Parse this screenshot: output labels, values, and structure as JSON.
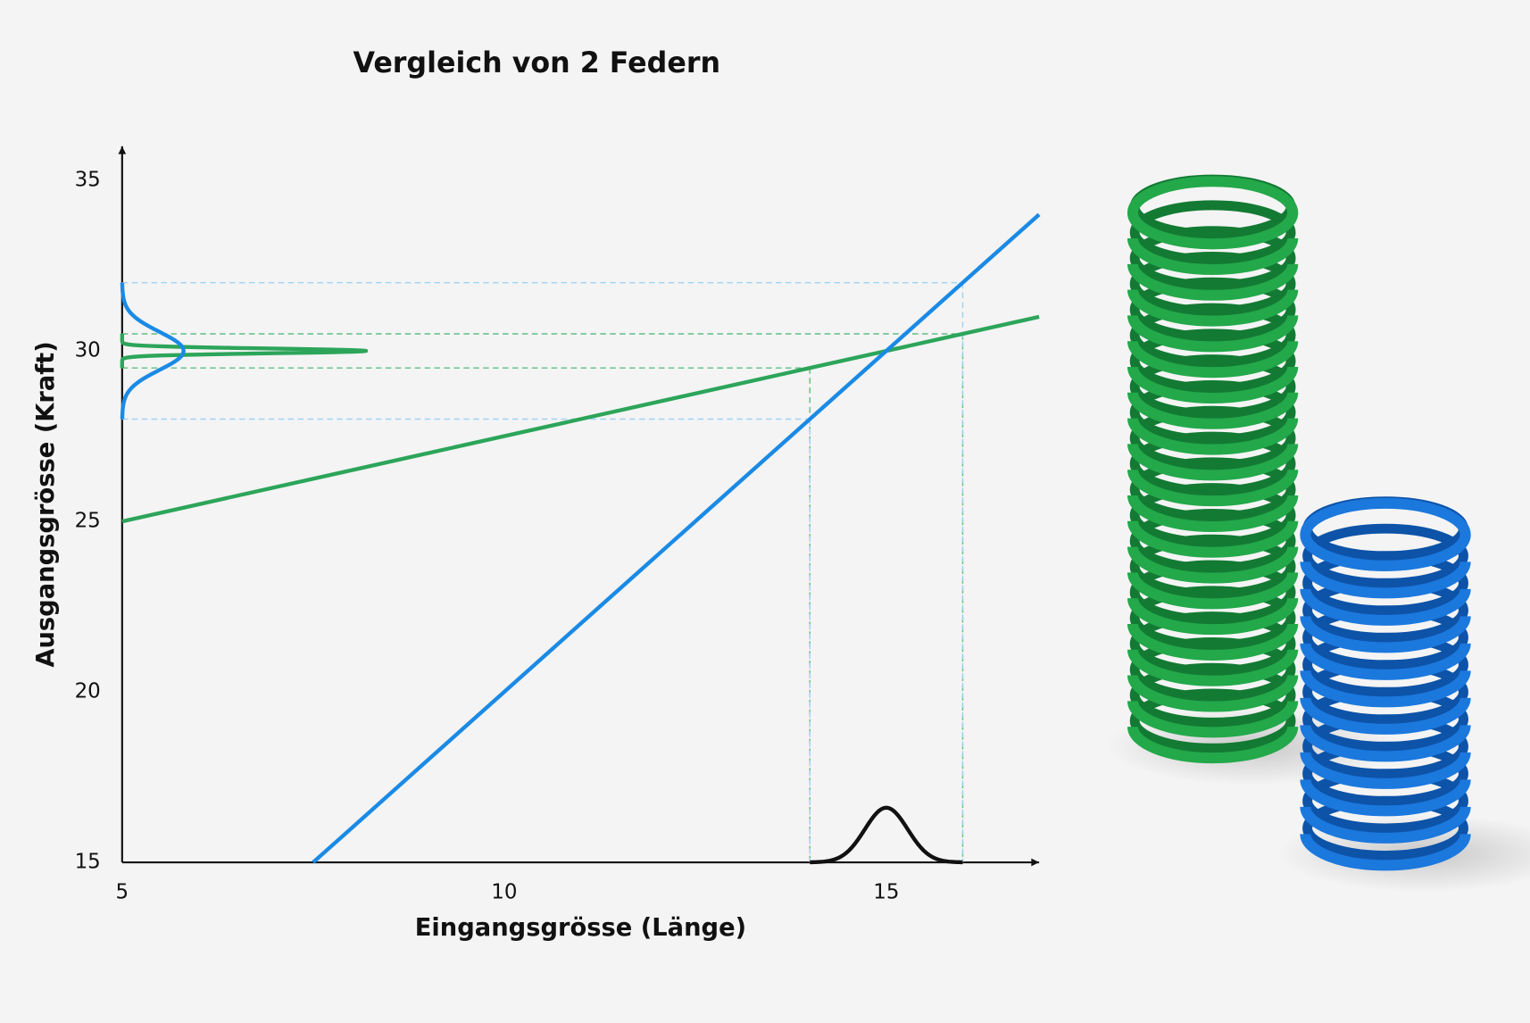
{
  "chart_data": {
    "type": "line",
    "title": "Vergleich von 2 Federn",
    "x_label": "Eingangsgrösse (Länge)",
    "y_label": "Ausgangsgrösse (Kraft)",
    "xlim": [
      5,
      17
    ],
    "ylim": [
      15,
      36
    ],
    "xticks": [
      5,
      10,
      15
    ],
    "yticks": [
      15,
      20,
      25,
      30,
      35
    ],
    "series": [
      {
        "color": "#2ca55a",
        "x": [
          5,
          17
        ],
        "values": [
          25,
          31
        ],
        "projection": {
          "x": [
            14,
            16
          ],
          "y": [
            29.5,
            30.5
          ]
        }
      },
      {
        "color": "#1a8ae5",
        "x": [
          7.5,
          17
        ],
        "values": [
          15,
          34
        ],
        "projection": {
          "x": [
            14,
            16
          ],
          "y": [
            28,
            32
          ]
        }
      }
    ]
  }
}
